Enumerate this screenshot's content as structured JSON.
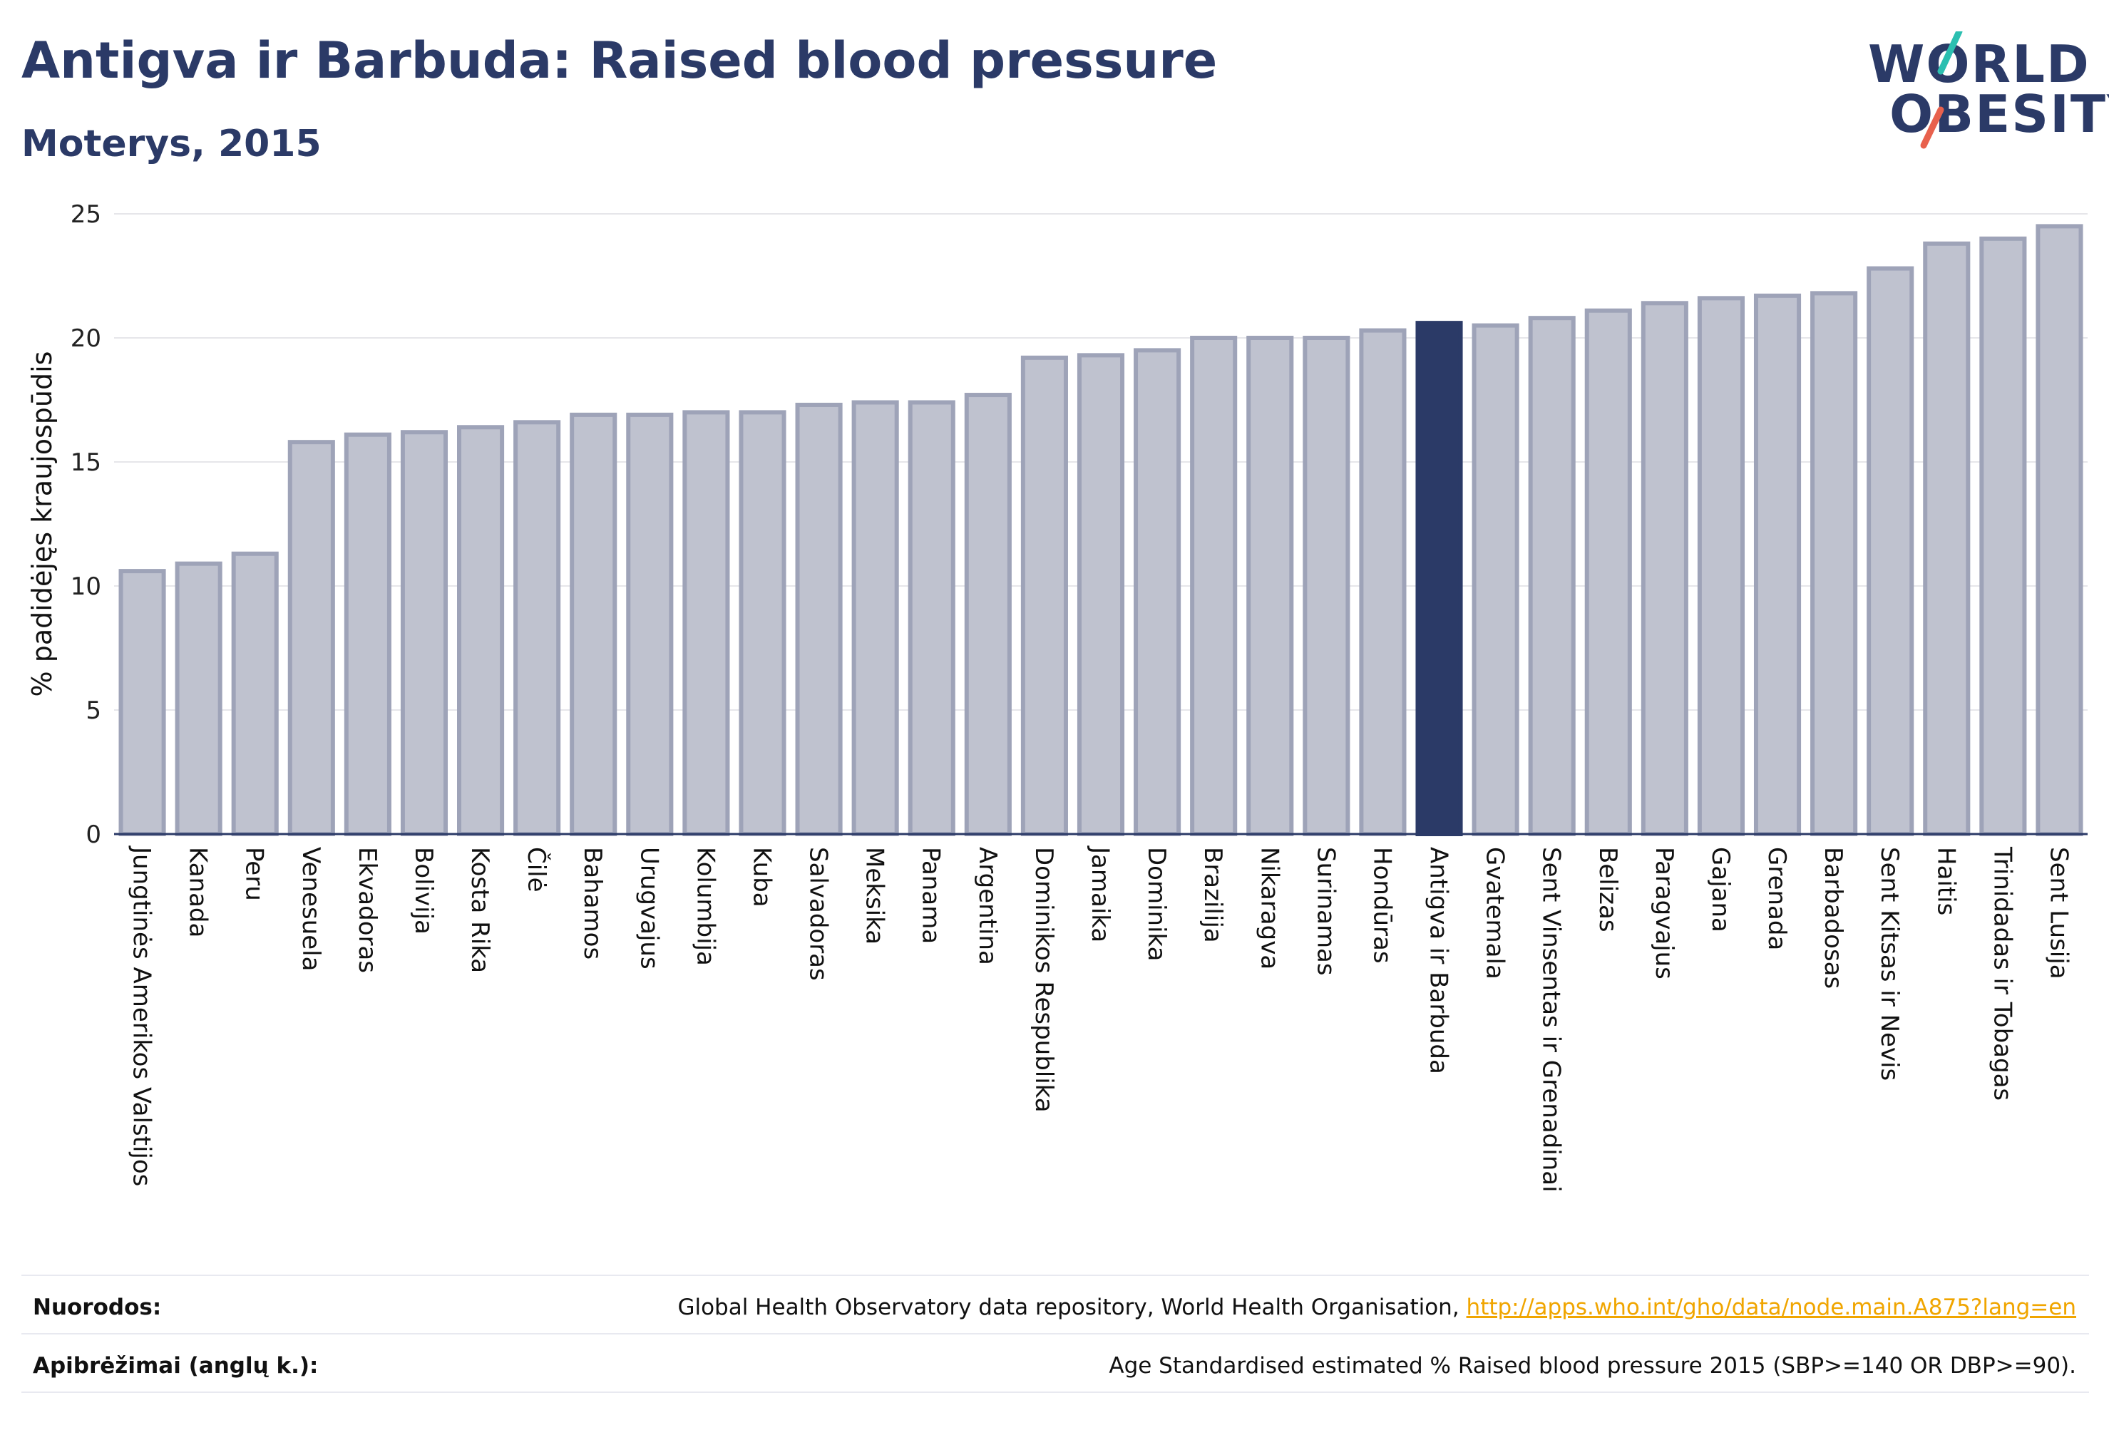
{
  "header": {
    "title": "Antigva ir Barbuda: Raised blood pressure",
    "subtitle": "Moterys, 2015"
  },
  "logo": {
    "line1": "WORLD",
    "line2": "OBESITY",
    "colors": {
      "text": "#2b3a67",
      "slash_top": "#2bbfb0",
      "slash_bottom": "#e8614d"
    }
  },
  "colors": {
    "bar": "#bfc2cf",
    "bar_border": "#9ea3b8",
    "highlight": "#2b3a67",
    "grid": "#e6e6ea",
    "title": "#2b3a67",
    "link": "#f0a500"
  },
  "chart_data": {
    "type": "bar",
    "ylabel": "% padidėjęs kraujospūdis",
    "ylim": [
      0,
      25
    ],
    "yticks": [
      0,
      5,
      10,
      15,
      20,
      25
    ],
    "grid": true,
    "highlight": "Antigva ir Barbuda",
    "categories": [
      "Jungtinės Amerikos Valstijos",
      "Kanada",
      "Peru",
      "Venesuela",
      "Ekvadoras",
      "Bolivija",
      "Kosta Rika",
      "Čilė",
      "Bahamos",
      "Urugvajus",
      "Kolumbija",
      "Kuba",
      "Salvadoras",
      "Meksika",
      "Panama",
      "Argentina",
      "Dominikos Respublika",
      "Jamaika",
      "Dominika",
      "Brazilija",
      "Nikaragva",
      "Surinamas",
      "Hondūras",
      "Antigva ir Barbuda",
      "Gvatemala",
      "Sent Vinsentas ir Grenadinai",
      "Belizas",
      "Paragvajus",
      "Gajana",
      "Grenada",
      "Barbadosas",
      "Sent Kitsas ir Nevis",
      "Haitis",
      "Trinidadas ir Tobagas",
      "Sent Lusija"
    ],
    "values": [
      10.6,
      10.9,
      11.3,
      15.8,
      16.1,
      16.2,
      16.4,
      16.6,
      16.9,
      16.9,
      17.0,
      17.0,
      17.3,
      17.4,
      17.4,
      17.7,
      19.2,
      19.3,
      19.5,
      20.0,
      20.0,
      20.0,
      20.3,
      20.6,
      20.5,
      20.8,
      21.1,
      21.4,
      21.6,
      21.7,
      21.8,
      22.8,
      23.8,
      24.0,
      24.5
    ]
  },
  "footer": {
    "sources_label": "Nuorodos:",
    "sources_text": "Global Health Observatory data repository, World Health Organisation, ",
    "sources_link": "http://apps.who.int/gho/data/node.main.A875?lang=en",
    "definitions_label": "Apibrėžimai (anglų k.):",
    "definitions_text": "Age Standardised estimated % Raised blood pressure 2015 (SBP>=140 OR DBP>=90)."
  }
}
